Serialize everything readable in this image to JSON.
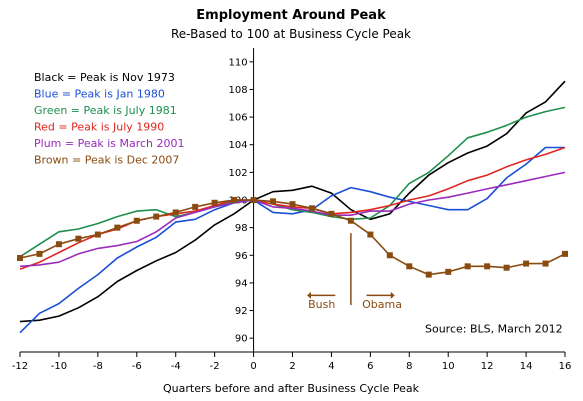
{
  "chart_data": {
    "type": "line",
    "title": "Employment Around Peak",
    "subtitle": "Re-Based to 100 at Business Cycle Peak",
    "xlabel": "Quarters before and after Business Cycle Peak",
    "ylabel": "",
    "xlim": [
      -12,
      16
    ],
    "ylim": [
      89,
      111
    ],
    "x_ticks": [
      -12,
      -10,
      -8,
      -6,
      -4,
      -2,
      0,
      2,
      4,
      6,
      8,
      10,
      12,
      14,
      16
    ],
    "x_tick_labels": [
      "-12",
      "-10",
      "-8",
      "-6",
      "-4",
      "-2",
      "0",
      "2",
      "4",
      "6",
      "8",
      "10",
      "12",
      "14",
      "16"
    ],
    "y_ticks": [
      90,
      92,
      94,
      96,
      98,
      100,
      102,
      104,
      106,
      108,
      110
    ],
    "y_tick_labels": [
      "90",
      "92",
      "94",
      "96",
      "98",
      "100",
      "102",
      "104",
      "106",
      "108",
      "110"
    ],
    "grid": false,
    "legend_placement": "top-left",
    "x": [
      -12,
      -11,
      -10,
      -9,
      -8,
      -7,
      -6,
      -5,
      -4,
      -3,
      -2,
      -1,
      0,
      1,
      2,
      3,
      4,
      5,
      6,
      7,
      8,
      9,
      10,
      11,
      12,
      13,
      14,
      15,
      16
    ],
    "series": [
      {
        "name": "Black = Peak is Nov 1973",
        "color": "#000000",
        "values": [
          91.2,
          91.3,
          91.6,
          92.2,
          93.0,
          94.1,
          94.9,
          95.6,
          96.2,
          97.1,
          98.2,
          99.0,
          100.0,
          100.6,
          100.7,
          101.0,
          100.5,
          99.3,
          98.6,
          99.0,
          100.5,
          101.8,
          102.7,
          103.4,
          103.9,
          104.8,
          106.3,
          107.1,
          108.6
        ]
      },
      {
        "name": "Blue = Peak is Jan 1980",
        "color": "#1a4fd6",
        "values": [
          90.4,
          91.8,
          92.5,
          93.6,
          94.6,
          95.8,
          96.6,
          97.3,
          98.4,
          98.6,
          99.3,
          99.8,
          100.0,
          99.1,
          99.0,
          99.3,
          100.3,
          100.9,
          100.6,
          100.2,
          99.9,
          99.6,
          99.3,
          99.3,
          100.1,
          101.6,
          102.6,
          103.8,
          103.8
        ]
      },
      {
        "name": "Green = Peak is July 1981",
        "color": "#1e8f4e",
        "values": [
          95.9,
          96.8,
          97.7,
          97.9,
          98.3,
          98.8,
          99.2,
          99.3,
          98.8,
          99.1,
          99.5,
          99.9,
          100.0,
          99.7,
          99.3,
          99.1,
          98.8,
          98.6,
          98.7,
          99.6,
          101.2,
          102.0,
          103.2,
          104.5,
          104.9,
          105.4,
          106.0,
          106.4,
          106.7
        ]
      },
      {
        "name": "Red = Peak is July 1990",
        "color": "#e0261f",
        "values": [
          95.0,
          95.5,
          96.2,
          96.9,
          97.5,
          97.9,
          98.5,
          98.8,
          99.0,
          99.2,
          99.6,
          100.0,
          100.0,
          99.7,
          99.5,
          99.4,
          99.0,
          99.1,
          99.3,
          99.6,
          100.0,
          100.3,
          100.8,
          101.4,
          101.8,
          102.4,
          102.9,
          103.3,
          103.8
        ]
      },
      {
        "name": "Plum = Peak is March 2001",
        "color": "#9b2bbd",
        "values": [
          95.2,
          95.3,
          95.5,
          96.1,
          96.5,
          96.7,
          97.0,
          97.7,
          98.7,
          99.1,
          99.5,
          99.8,
          100.0,
          99.5,
          99.4,
          99.2,
          98.9,
          98.9,
          99.2,
          99.2,
          99.7,
          100.0,
          100.2,
          100.5,
          100.8,
          101.1,
          101.4,
          101.7,
          102.0
        ]
      },
      {
        "name": "Brown = Peak is Dec 2007",
        "color": "#8a4b10",
        "marker": "square",
        "values": [
          95.8,
          96.1,
          96.8,
          97.2,
          97.5,
          98.0,
          98.5,
          98.8,
          99.1,
          99.5,
          99.8,
          100.0,
          100.0,
          99.9,
          99.7,
          99.4,
          99.0,
          98.5,
          97.5,
          96.0,
          95.2,
          94.6,
          94.8,
          95.2,
          95.2,
          95.1,
          95.4,
          95.4,
          96.1
        ]
      }
    ],
    "annotations": {
      "vline_x": 5,
      "bush_label": "Bush",
      "obama_label": "Obama",
      "source": "Source: BLS, March 2012",
      "color": "#8a4b10"
    }
  }
}
